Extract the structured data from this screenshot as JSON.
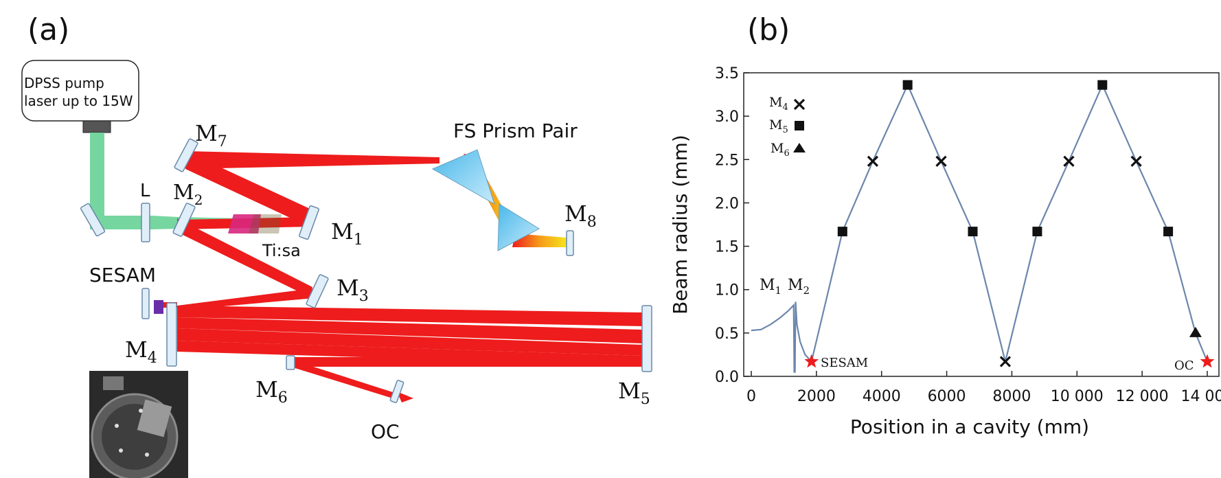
{
  "panel_a": {
    "label": "(a)",
    "pump_box": {
      "line1": "DPSS pump",
      "line2": "laser up to 15W"
    },
    "labels": {
      "L": "L",
      "M1": "M",
      "M1_sub": "1",
      "M2": "M",
      "M2_sub": "2",
      "M3": "M",
      "M3_sub": "3",
      "M4": "M",
      "M4_sub": "4",
      "M5": "M",
      "M5_sub": "5",
      "M6": "M",
      "M6_sub": "6",
      "M7": "M",
      "M7_sub": "7",
      "M8": "M",
      "M8_sub": "8",
      "crystal": "Ti:sa",
      "sesam": "SESAM",
      "prism": "FS Prism Pair",
      "oc": "OC"
    },
    "colors": {
      "beam": "#ee1c1c",
      "pump": "#6fd49b",
      "crystal": "#d8287d",
      "mirror": "#dfeef8",
      "mirror_edge": "#6a88a8",
      "prism": "#8fd0f0"
    }
  },
  "panel_b": {
    "label": "(b)",
    "legend": [
      {
        "text": "M",
        "sub": "4",
        "marker": "cross"
      },
      {
        "text": "M",
        "sub": "5",
        "marker": "square"
      },
      {
        "text": "M",
        "sub": "6",
        "marker": "triangle"
      }
    ],
    "annotations": {
      "m1": "M",
      "m1_sub": "1",
      "m2": "M",
      "m2_sub": "2",
      "sesam": "SESAM",
      "oc": "OC"
    }
  },
  "chart_data": {
    "type": "line",
    "xlabel": "Position in a cavity (mm)",
    "ylabel": "Beam radius (mm)",
    "xlim": [
      0,
      14000
    ],
    "ylim": [
      0,
      3.5
    ],
    "xticks": [
      "0",
      "2000",
      "4000",
      "6000",
      "8000",
      "10 000",
      "12 000",
      "14 000"
    ],
    "xtick_values": [
      0,
      2000,
      4000,
      6000,
      8000,
      10000,
      12000,
      14000
    ],
    "yticks": [
      "0.0",
      "0.5",
      "1.0",
      "1.5",
      "2.0",
      "2.5",
      "3.0",
      "3.5"
    ],
    "ytick_values": [
      0,
      0.5,
      1.0,
      1.5,
      2.0,
      2.5,
      3.0,
      3.5
    ],
    "line_color": "#6b86ac",
    "curve": [
      [
        0,
        0.53
      ],
      [
        300,
        0.54
      ],
      [
        600,
        0.6
      ],
      [
        900,
        0.68
      ],
      [
        1150,
        0.76
      ],
      [
        1300,
        0.82
      ],
      [
        1320,
        0.05
      ],
      [
        1340,
        0.05
      ],
      [
        1360,
        0.86
      ],
      [
        1400,
        0.6
      ],
      [
        1500,
        0.4
      ],
      [
        1650,
        0.25
      ],
      [
        1850,
        0.17
      ],
      [
        2800,
        1.67
      ],
      [
        3730,
        2.48
      ],
      [
        4800,
        3.36
      ],
      [
        5830,
        2.48
      ],
      [
        6800,
        1.67
      ],
      [
        7800,
        0.17
      ],
      [
        8780,
        1.67
      ],
      [
        9750,
        2.48
      ],
      [
        10780,
        3.36
      ],
      [
        11820,
        2.48
      ],
      [
        12800,
        1.67
      ],
      [
        13640,
        0.5
      ],
      [
        14000,
        0.17
      ]
    ],
    "series": [
      {
        "name": "M4",
        "marker": "cross",
        "points": [
          [
            3730,
            2.48
          ],
          [
            5830,
            2.48
          ],
          [
            7800,
            0.17
          ],
          [
            9750,
            2.48
          ],
          [
            11820,
            2.48
          ]
        ]
      },
      {
        "name": "M5",
        "marker": "square",
        "points": [
          [
            2800,
            1.67
          ],
          [
            4800,
            3.36
          ],
          [
            6800,
            1.67
          ],
          [
            8780,
            1.67
          ],
          [
            10780,
            3.36
          ],
          [
            12800,
            1.67
          ]
        ]
      },
      {
        "name": "M6",
        "marker": "triangle",
        "points": [
          [
            13640,
            0.5
          ]
        ]
      },
      {
        "name": "SESAM",
        "marker": "star",
        "points": [
          [
            1850,
            0.17
          ]
        ]
      },
      {
        "name": "OC",
        "marker": "star",
        "points": [
          [
            14000,
            0.17
          ]
        ]
      }
    ]
  }
}
